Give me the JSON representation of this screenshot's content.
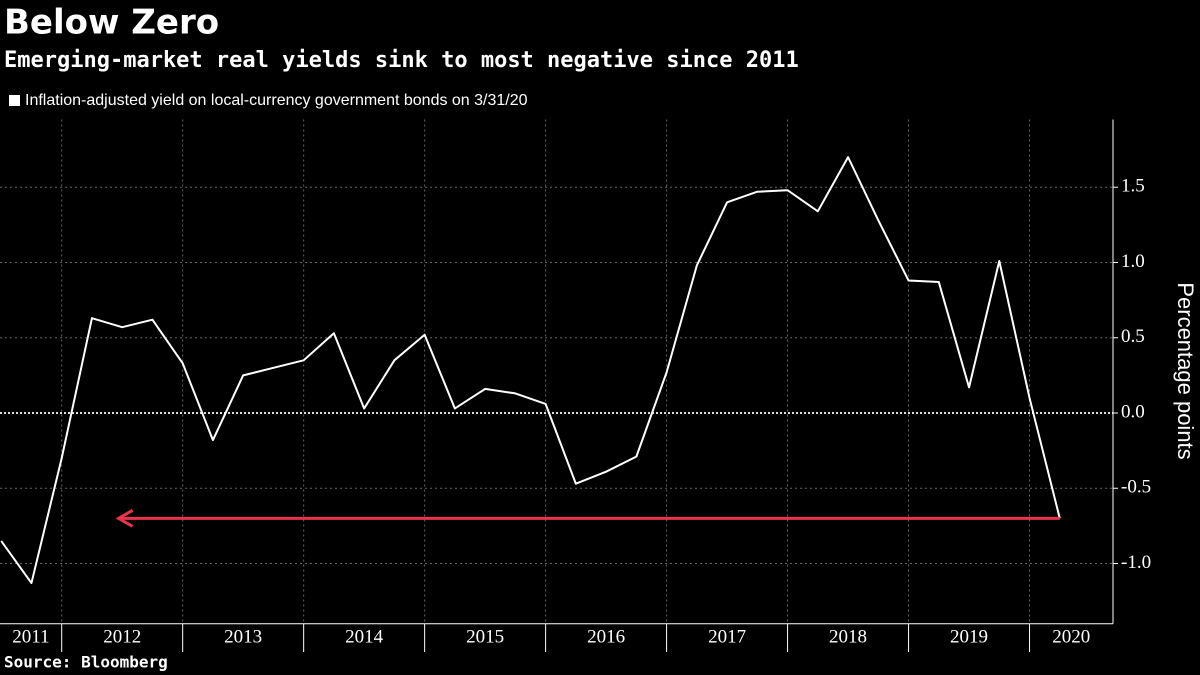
{
  "chart_data": {
    "type": "line",
    "title": "Below Zero",
    "subtitle": "Emerging-market real yields sink to most negative since 2011",
    "source": "Source: Bloomberg",
    "y_label": "Percentage points",
    "series": [
      {
        "name": "Inflation-adjusted yield on local-currency government bonds on 3/31/20",
        "color": "#ffffff",
        "x": [
          2011.5,
          2011.75,
          2012.0,
          2012.25,
          2012.5,
          2012.75,
          2013.0,
          2013.25,
          2013.5,
          2013.75,
          2014.0,
          2014.25,
          2014.5,
          2014.75,
          2015.0,
          2015.25,
          2015.5,
          2015.75,
          2016.0,
          2016.25,
          2016.5,
          2016.75,
          2017.0,
          2017.25,
          2017.5,
          2017.75,
          2018.0,
          2018.25,
          2018.5,
          2018.75,
          2019.0,
          2019.25,
          2019.5,
          2019.75,
          2020.0,
          2020.25
        ],
        "values": [
          -0.85,
          -1.13,
          -0.3,
          0.63,
          0.57,
          0.62,
          0.33,
          -0.18,
          0.25,
          0.3,
          0.35,
          0.53,
          0.03,
          0.35,
          0.52,
          0.03,
          0.16,
          0.13,
          0.06,
          -0.47,
          -0.39,
          -0.29,
          0.27,
          0.98,
          1.4,
          1.47,
          1.48,
          1.34,
          1.7,
          1.28,
          0.88,
          0.87,
          0.17,
          1.01,
          0.1,
          -0.7
        ]
      }
    ],
    "arrow": {
      "y": -0.7,
      "x_from": 2020.25,
      "x_to": 2012.47,
      "color": "#e8334a"
    },
    "xlim": [
      2011.49,
      2020.69
    ],
    "xticks": [
      {
        "value": 2011,
        "label": "2011"
      },
      {
        "value": 2012,
        "label": "2012"
      },
      {
        "value": 2013,
        "label": "2013"
      },
      {
        "value": 2014,
        "label": "2014"
      },
      {
        "value": 2015,
        "label": "2015"
      },
      {
        "value": 2016,
        "label": "2016"
      },
      {
        "value": 2017,
        "label": "2017"
      },
      {
        "value": 2018,
        "label": "2018"
      },
      {
        "value": 2019,
        "label": "2019"
      },
      {
        "value": 2020,
        "label": "2020"
      }
    ],
    "ylim": [
      -1.4,
      1.95
    ],
    "yticks": [
      {
        "value": -1,
        "label": "-1.0"
      },
      -0.5,
      {
        "value": 0,
        "label": "0.0"
      },
      0.5,
      {
        "value": 1,
        "label": "1.0"
      },
      1.5
    ],
    "grid": true
  }
}
